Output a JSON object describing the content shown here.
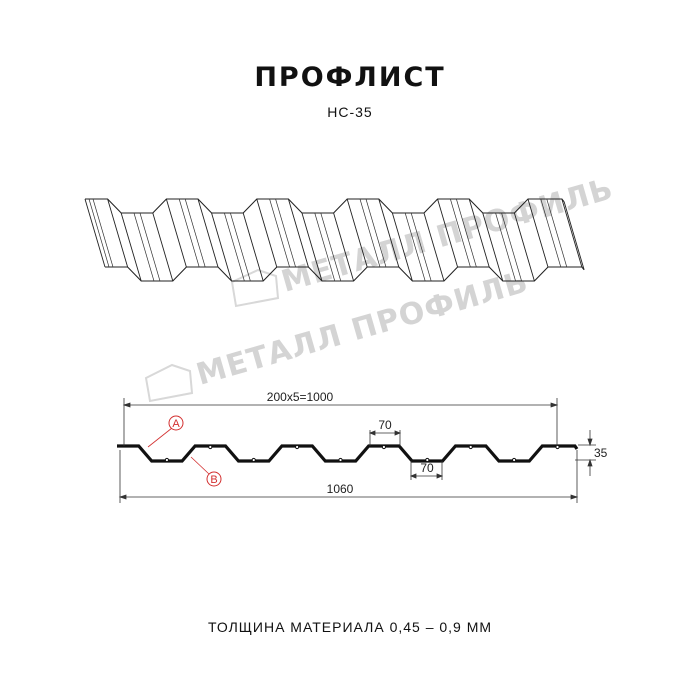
{
  "header": {
    "title": "ПРОФЛИСТ",
    "subtitle": "НС-35"
  },
  "watermark": {
    "text": "МЕТАЛЛ ПРОФИЛЬ",
    "color": "#d4d4d4"
  },
  "drawing": {
    "pitch_label": "200x5=1000",
    "total_width_label": "1060",
    "height_label": "35",
    "top_flat_label": "70",
    "bottom_flat_label": "70",
    "callouts": [
      {
        "letter": "A",
        "color": "#d32f2f"
      },
      {
        "letter": "B",
        "color": "#d32f2f"
      }
    ]
  },
  "footer": {
    "thickness": "ТОЛЩИНА МАТЕРИАЛА 0,45 – 0,9 ММ"
  }
}
